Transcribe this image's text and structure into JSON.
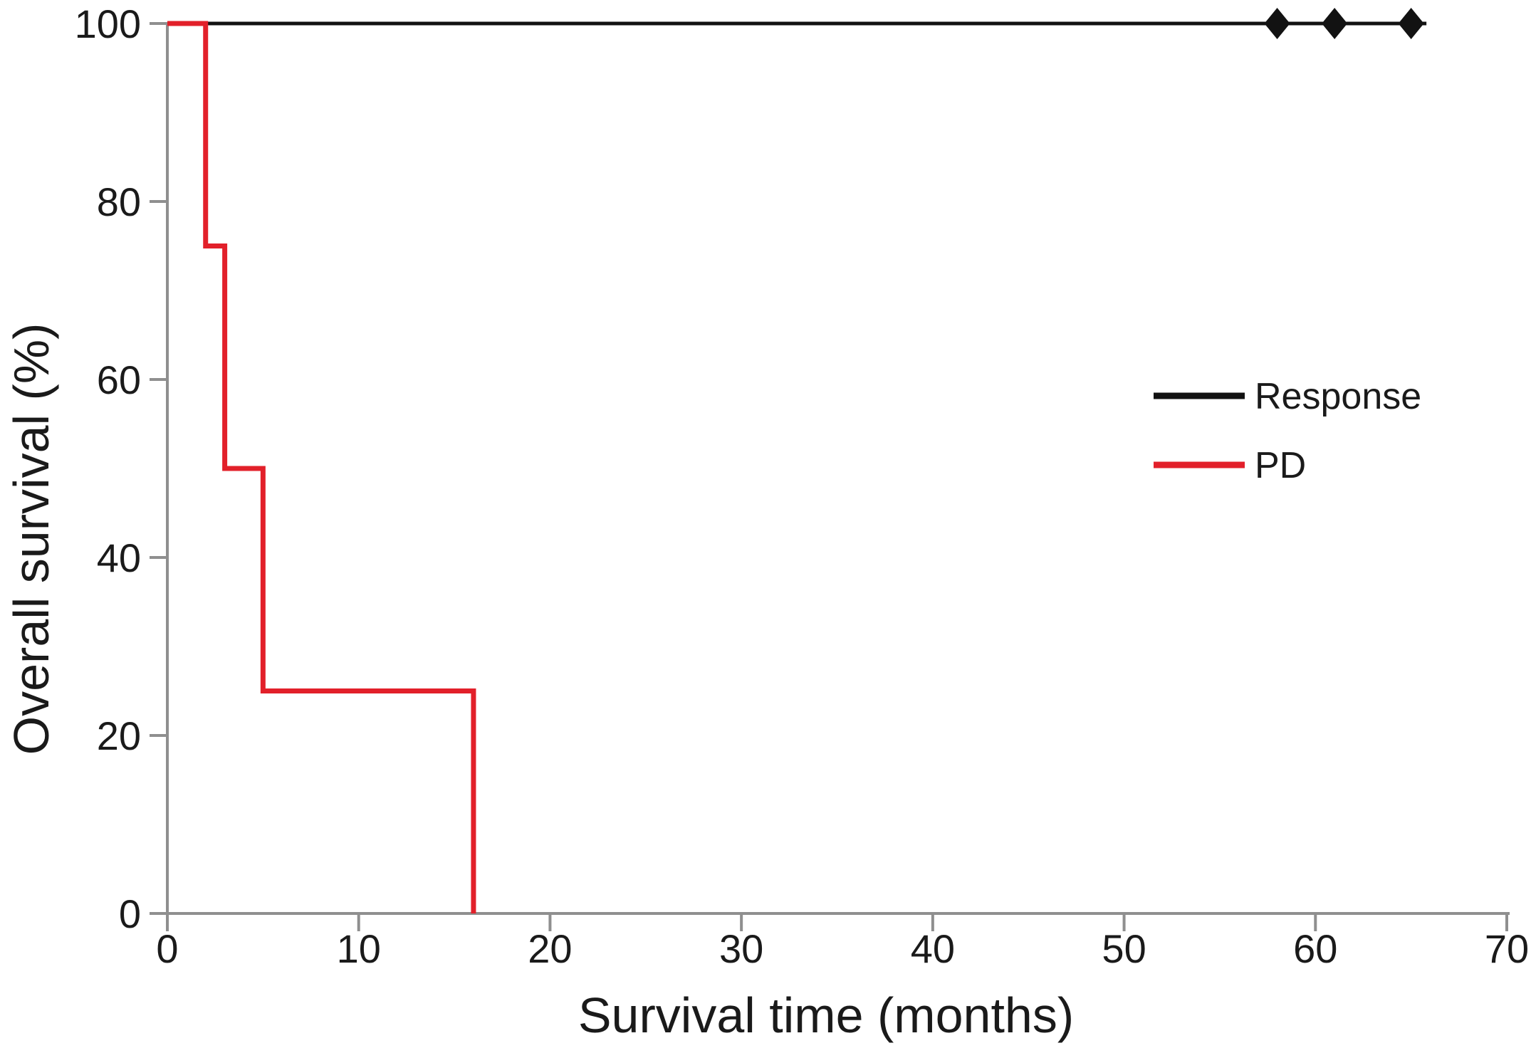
{
  "figure": {
    "background_color": "#ffffff"
  },
  "chart_data": {
    "type": "line",
    "subtype": "kaplan-meier-step",
    "title": "",
    "xlabel": "Survival time (months)",
    "ylabel": "Overall survival (%)",
    "xlim": [
      0,
      70
    ],
    "ylim": [
      0,
      100
    ],
    "xticks": [
      0,
      10,
      20,
      30,
      40,
      50,
      60,
      70
    ],
    "yticks": [
      0,
      20,
      40,
      60,
      80,
      100
    ],
    "grid": false,
    "axis_color": "#8f8f8f",
    "text_color": "#1a1a1a",
    "legend": {
      "position": "center-right",
      "items": [
        "Response",
        "PD"
      ]
    },
    "series": [
      {
        "name": "Response",
        "color": "#121212",
        "points": [
          [
            0,
            100
          ],
          [
            65.8,
            100
          ]
        ],
        "censor_marker": "diamond",
        "censor_times": [
          58,
          61,
          65
        ],
        "censor_survival": 100
      },
      {
        "name": "PD",
        "color": "#e2202a",
        "points": [
          [
            0,
            100
          ],
          [
            2,
            100
          ],
          [
            2,
            75
          ],
          [
            3,
            75
          ],
          [
            3,
            50
          ],
          [
            5,
            50
          ],
          [
            5,
            25
          ],
          [
            16,
            25
          ],
          [
            16,
            0
          ]
        ],
        "censor_marker": "none",
        "censor_times": []
      }
    ]
  }
}
